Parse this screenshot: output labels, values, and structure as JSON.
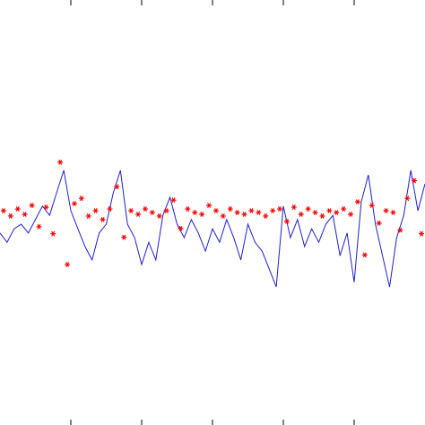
{
  "chart_data": {
    "type": "line",
    "xlim": [
      0,
      600
    ],
    "xticks": [
      100,
      200,
      300,
      400,
      500
    ],
    "ylim": [
      -6,
      6
    ],
    "x": [
      0,
      10,
      20,
      30,
      40,
      50,
      60,
      70,
      80,
      90,
      100,
      110,
      120,
      130,
      140,
      150,
      160,
      170,
      180,
      190,
      200,
      210,
      220,
      230,
      240,
      250,
      260,
      270,
      280,
      290,
      300,
      310,
      320,
      330,
      340,
      350,
      360,
      370,
      380,
      390,
      400,
      410,
      420,
      430,
      440,
      450,
      460,
      470,
      480,
      490,
      500,
      510,
      520,
      530,
      540,
      550,
      560,
      570,
      580,
      590,
      600
    ],
    "series": [
      {
        "color": "#1f1fd0",
        "linestyle": "solid",
        "values": [
          -0.58,
          -0.84,
          -0.46,
          -0.33,
          -0.58,
          -0.2,
          0.18,
          -0.08,
          0.56,
          1.19,
          0.05,
          -0.46,
          -0.96,
          -1.34,
          -0.58,
          -0.33,
          0.56,
          1.19,
          -0.33,
          -0.71,
          -1.47,
          -0.84,
          -1.34,
          -0.08,
          0.43,
          -0.33,
          -0.71,
          -0.2,
          -0.58,
          -1.09,
          -0.46,
          -0.84,
          -0.2,
          -0.71,
          -1.34,
          -0.33,
          -0.84,
          -1.09,
          -1.59,
          -2.1,
          0.18,
          -0.71,
          -0.2,
          -0.96,
          -0.46,
          -0.84,
          -0.33,
          -0.08,
          -1.22,
          -0.58,
          -1.97,
          0.3,
          1.06,
          -0.33,
          -1.22,
          -2.1,
          -0.71,
          -0.08,
          1.19,
          0.05,
          0.81
        ]
      },
      {
        "color": "#ff0000",
        "linestyle": "none",
        "marker": "*",
        "x": [
          5,
          15,
          25,
          35,
          45,
          55,
          65,
          75,
          85,
          95,
          105,
          115,
          125,
          135,
          145,
          155,
          165,
          175,
          185,
          195,
          205,
          215,
          225,
          235,
          245,
          255,
          265,
          275,
          285,
          295,
          305,
          315,
          325,
          335,
          345,
          355,
          365,
          375,
          385,
          395,
          405,
          415,
          425,
          435,
          445,
          455,
          465,
          475,
          485,
          495,
          505,
          515,
          525,
          535,
          545,
          555,
          565,
          575,
          585,
          595
        ],
        "values": [
          0.05,
          -0.1,
          0.1,
          -0.05,
          0.2,
          -0.4,
          0.15,
          -0.6,
          1.42,
          -1.47,
          0.25,
          0.4,
          -0.1,
          0.05,
          -0.2,
          0.1,
          0.73,
          -0.7,
          0.05,
          -0.05,
          0.1,
          0,
          -0.1,
          0.05,
          0.35,
          -0.45,
          0.1,
          0,
          -0.05,
          0.2,
          0.05,
          -0.1,
          0.1,
          0,
          -0.05,
          0.05,
          0,
          -0.1,
          0.05,
          0.1,
          -0.25,
          0.15,
          -0.05,
          0.1,
          0,
          -0.1,
          0.05,
          0,
          0.1,
          -0.05,
          0.3,
          -1.2,
          0.2,
          -0.3,
          0.05,
          0,
          -0.5,
          0.4,
          0.9,
          -0.6
        ]
      }
    ]
  }
}
